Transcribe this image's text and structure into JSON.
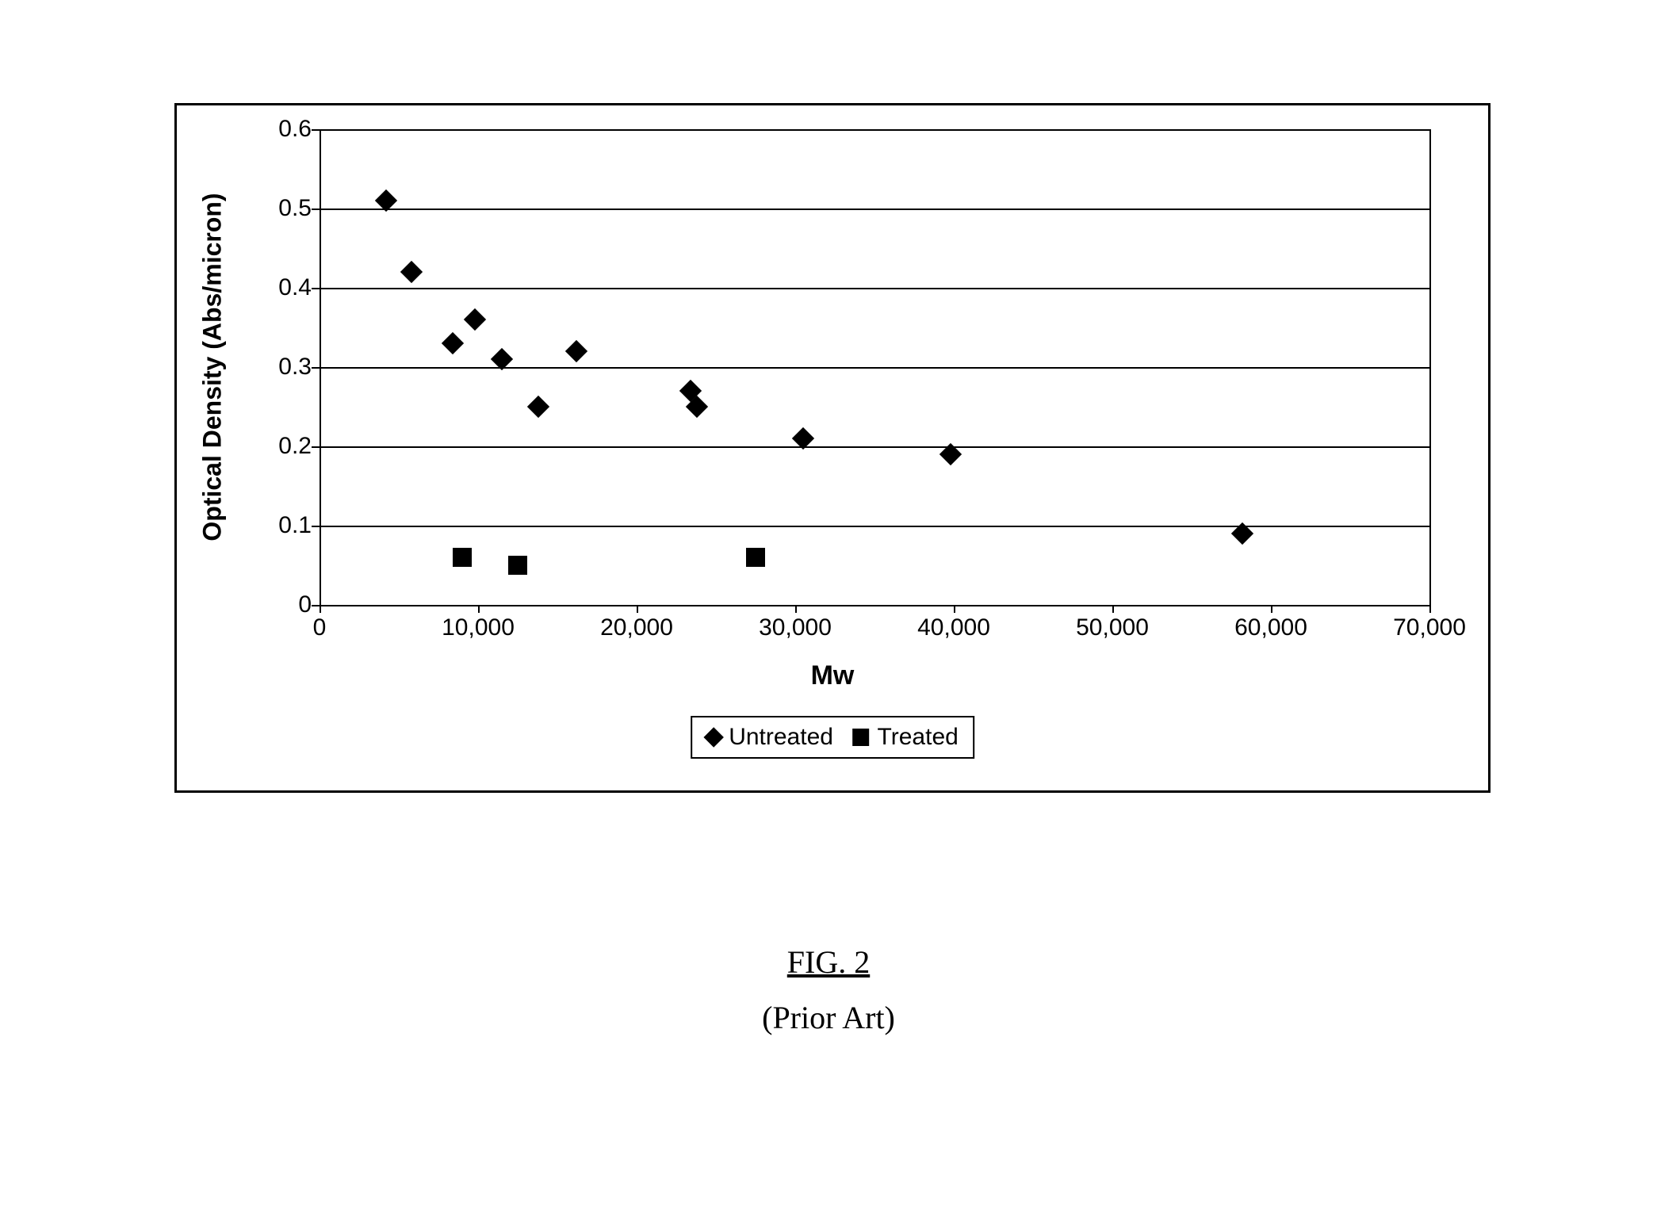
{
  "chart": {
    "type": "scatter",
    "xlabel": "Mw",
    "ylabel": "Optical Density (Abs/micron)",
    "xlim": [
      0,
      70000
    ],
    "ylim": [
      0,
      0.6
    ],
    "xtick_step": 10000,
    "ytick_step": 0.1,
    "xtick_labels": [
      "0",
      "10,000",
      "20,000",
      "30,000",
      "40,000",
      "50,000",
      "60,000",
      "70,000"
    ],
    "ytick_labels": [
      "0",
      "0.1",
      "0.2",
      "0.3",
      "0.4",
      "0.5",
      "0.6"
    ],
    "background_color": "#ffffff",
    "border_color": "#000000",
    "grid_color": "#000000",
    "grid_linewidth": 2,
    "label_fontsize": 32,
    "tick_fontsize": 30,
    "series": [
      {
        "name": "Untreated",
        "marker": "diamond",
        "marker_size": 20,
        "color": "#000000",
        "points": [
          {
            "x": 4200,
            "y": 0.51
          },
          {
            "x": 5800,
            "y": 0.42
          },
          {
            "x": 8400,
            "y": 0.33
          },
          {
            "x": 9800,
            "y": 0.36
          },
          {
            "x": 11500,
            "y": 0.31
          },
          {
            "x": 13800,
            "y": 0.25
          },
          {
            "x": 16200,
            "y": 0.32
          },
          {
            "x": 23400,
            "y": 0.27
          },
          {
            "x": 23800,
            "y": 0.25
          },
          {
            "x": 30500,
            "y": 0.21
          },
          {
            "x": 39800,
            "y": 0.19
          },
          {
            "x": 58200,
            "y": 0.09
          }
        ]
      },
      {
        "name": "Treated",
        "marker": "square",
        "marker_size": 24,
        "color": "#000000",
        "points": [
          {
            "x": 9000,
            "y": 0.06
          },
          {
            "x": 12500,
            "y": 0.05
          },
          {
            "x": 27500,
            "y": 0.06
          }
        ]
      }
    ],
    "legend": {
      "items": [
        {
          "marker": "diamond",
          "label": "Untreated"
        },
        {
          "marker": "square",
          "label": "Treated"
        }
      ],
      "fontsize": 30,
      "border_color": "#000000"
    }
  },
  "caption": {
    "figure_label": "FIG. 2",
    "subtitle": "(Prior Art)",
    "fontsize": 40,
    "font_family": "Times New Roman"
  }
}
